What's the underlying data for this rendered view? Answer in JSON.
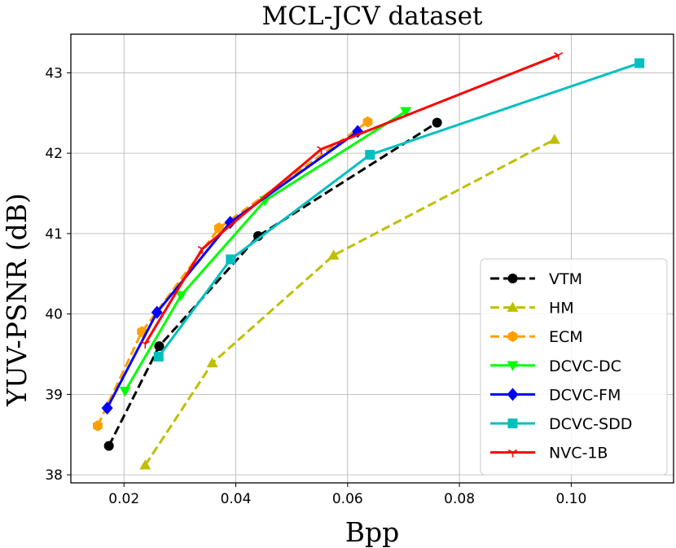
{
  "chart_data": {
    "type": "line",
    "title": "MCL-JCV dataset",
    "xlabel": "Bpp",
    "ylabel": "YUV-PSNR (dB)",
    "xlim": [
      0.0105,
      0.1183
    ],
    "ylim": [
      37.9,
      43.48
    ],
    "xticks": [
      0.02,
      0.04,
      0.06,
      0.08,
      0.1
    ],
    "xtick_labels": [
      "0.02",
      "0.04",
      "0.06",
      "0.08",
      "0.10"
    ],
    "yticks": [
      38,
      39,
      40,
      41,
      42,
      43
    ],
    "ytick_labels": [
      "38",
      "39",
      "40",
      "41",
      "42",
      "43"
    ],
    "grid": true,
    "legend_position": "lower-right",
    "series": [
      {
        "name": "VTM",
        "color": "#000000",
        "dash": "dashed",
        "marker": "circle",
        "x": [
          0.0173,
          0.0263,
          0.044,
          0.076
        ],
        "y": [
          38.36,
          39.6,
          40.97,
          42.38
        ]
      },
      {
        "name": "HM",
        "color": "#bfbf00",
        "dash": "dashed",
        "marker": "triangle-up",
        "x": [
          0.0238,
          0.0358,
          0.0575,
          0.097
        ],
        "y": [
          38.12,
          39.39,
          40.73,
          42.17
        ]
      },
      {
        "name": "ECM",
        "color": "#ff9f00",
        "dash": "dashed",
        "marker": "hexagon",
        "x": [
          0.0153,
          0.0232,
          0.037,
          0.0636
        ],
        "y": [
          38.61,
          39.78,
          41.07,
          42.39
        ]
      },
      {
        "name": "DCVC-DC",
        "color": "#00ff00",
        "dash": "solid",
        "marker": "triangle-down",
        "x": [
          0.0202,
          0.0302,
          0.0452,
          0.0704
        ],
        "y": [
          39.04,
          40.23,
          41.41,
          42.52
        ]
      },
      {
        "name": "DCVC-FM",
        "color": "#0000ff",
        "dash": "solid",
        "marker": "diamond",
        "x": [
          0.017,
          0.0259,
          0.039,
          0.0618
        ],
        "y": [
          38.83,
          40.02,
          41.14,
          42.27
        ]
      },
      {
        "name": "DCVC-SDD",
        "color": "#00bfbf",
        "dash": "solid",
        "marker": "square",
        "x": [
          0.0262,
          0.0391,
          0.064,
          0.1122
        ],
        "y": [
          39.47,
          40.68,
          41.98,
          43.12
        ]
      },
      {
        "name": "NVC-1B",
        "color": "#ff0000",
        "dash": "solid",
        "marker": "tri-down",
        "x": [
          0.0238,
          0.034,
          0.0553,
          0.0977
        ],
        "y": [
          39.63,
          40.81,
          42.05,
          43.22
        ]
      }
    ]
  }
}
